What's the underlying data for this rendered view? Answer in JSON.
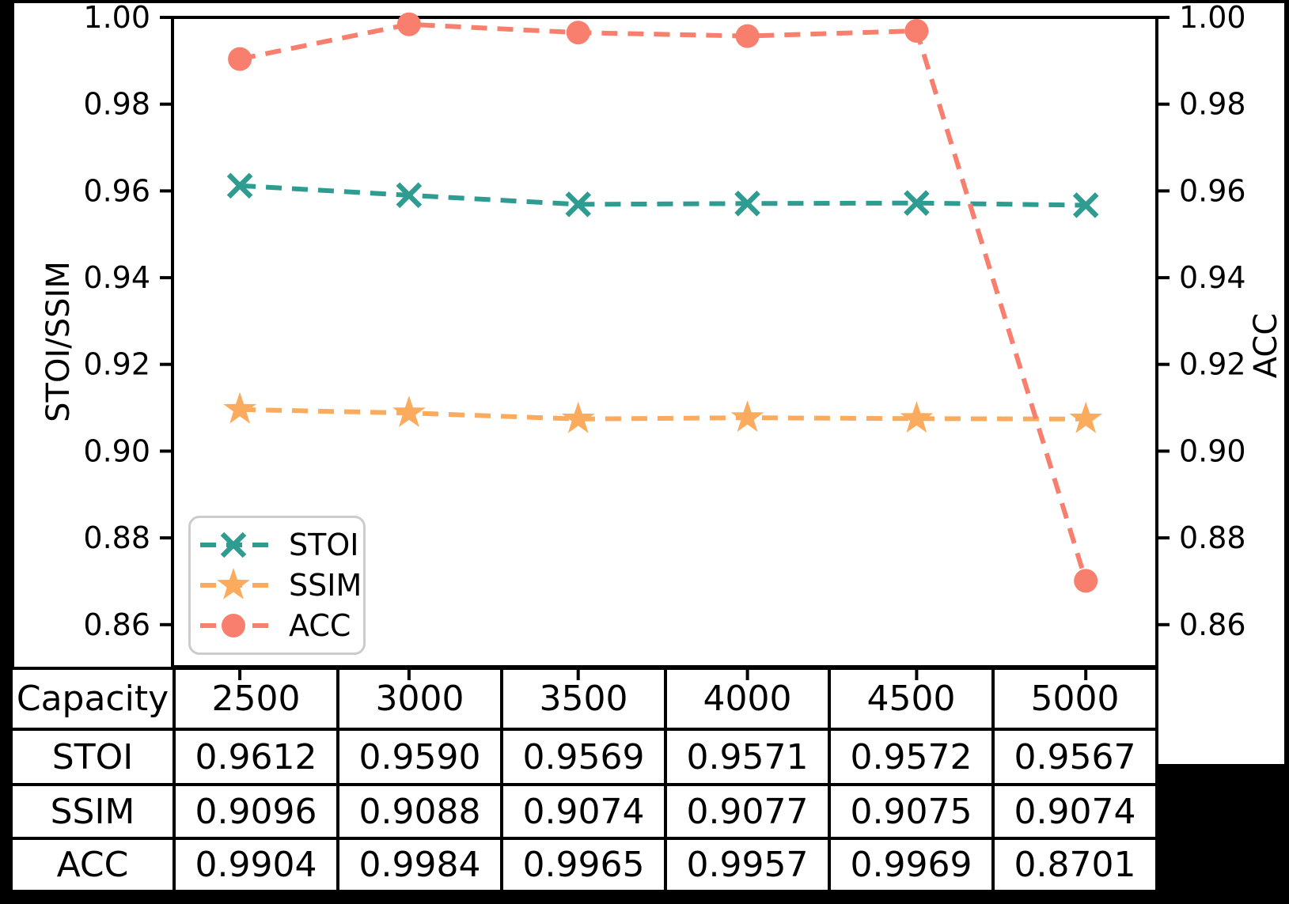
{
  "chart_data": {
    "type": "line",
    "x": [
      2500,
      3000,
      3500,
      4000,
      4500,
      5000
    ],
    "series": [
      {
        "name": "STOI",
        "color": "#2e9c90",
        "marker": "x",
        "values": [
          0.9612,
          0.959,
          0.9569,
          0.9571,
          0.9572,
          0.9567
        ]
      },
      {
        "name": "SSIM",
        "color": "#faab5e",
        "marker": "star",
        "values": [
          0.9096,
          0.9088,
          0.9074,
          0.9077,
          0.9075,
          0.9074
        ]
      },
      {
        "name": "ACC",
        "color": "#f87e6e",
        "marker": "circle",
        "values": [
          0.9904,
          0.9984,
          0.9965,
          0.9957,
          0.9969,
          0.8701
        ]
      }
    ],
    "ylabel_left": "STOI/SSIM",
    "ylabel_right": "ACC",
    "ytick_labels": [
      "1.00",
      "0.98",
      "0.96",
      "0.94",
      "0.92",
      "0.90",
      "0.88",
      "0.86"
    ],
    "ytick_values": [
      1.0,
      0.98,
      0.96,
      0.94,
      0.92,
      0.9,
      0.88,
      0.86
    ],
    "ylim": [
      0.8503,
      1.0
    ],
    "xlim": [
      2301,
      5210
    ],
    "line_style": "dashed",
    "grid": false,
    "legend_position": "lower-left",
    "legend_entries": [
      "STOI",
      "SSIM",
      "ACC"
    ]
  },
  "table": {
    "corner_label": "Capacity",
    "column_headers": [
      "2500",
      "3000",
      "3500",
      "4000",
      "4500",
      "5000"
    ],
    "rows": [
      {
        "label": "STOI",
        "values": [
          "0.9612",
          "0.9590",
          "0.9569",
          "0.9571",
          "0.9572",
          "0.9567"
        ]
      },
      {
        "label": "SSIM",
        "values": [
          "0.9096",
          "0.9088",
          "0.9074",
          "0.9077",
          "0.9075",
          "0.9074"
        ]
      },
      {
        "label": "ACC",
        "values": [
          "0.9904",
          "0.9984",
          "0.9965",
          "0.9957",
          "0.9969",
          "0.8701"
        ]
      }
    ]
  },
  "colors": {
    "stoi": "#2e9c90",
    "ssim": "#faab5e",
    "acc": "#f87e6e",
    "axis": "#000000",
    "figure_background": "#ffffff",
    "page_background": "#000000",
    "legend_border": "#cccccc"
  }
}
